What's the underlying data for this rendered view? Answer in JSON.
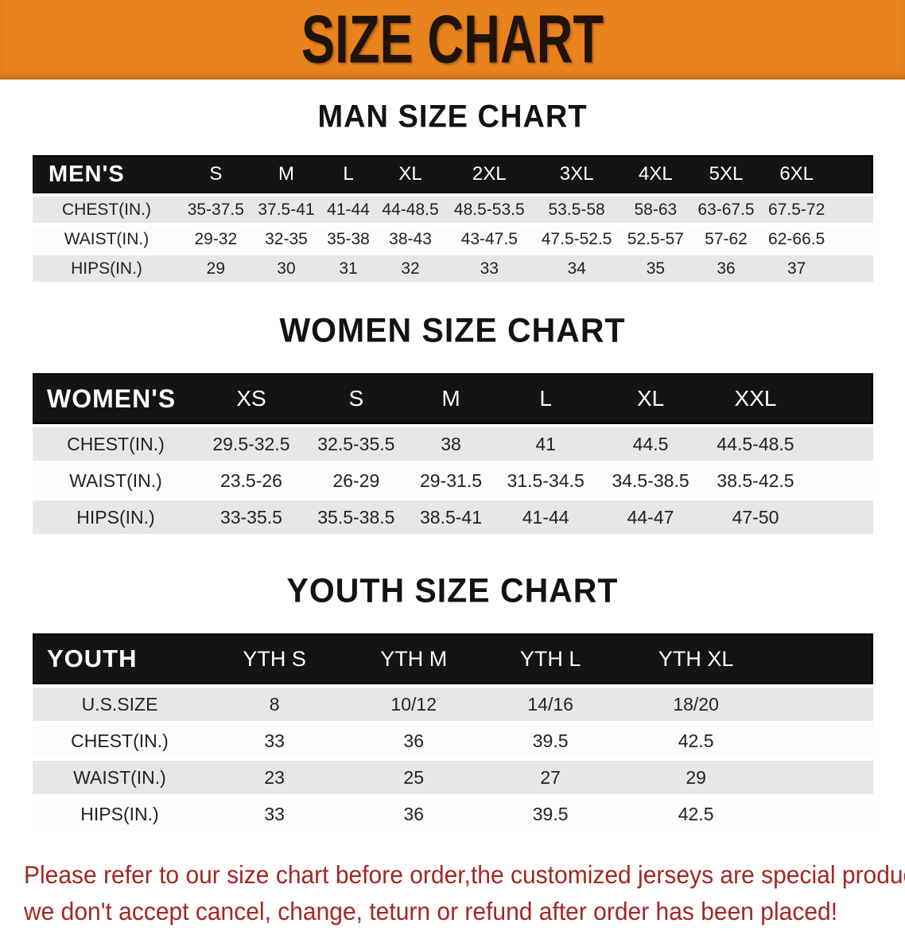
{
  "banner": {
    "title": "SIZE CHART"
  },
  "colors": {
    "banner_bg": "#e8821c",
    "banner_text": "#1f130a",
    "table_header_bg": "#141414",
    "table_header_text": "#ffffff",
    "row_gray": "#e7e7e5",
    "row_white": "#fcfcfc",
    "footer_text": "#a32723"
  },
  "sections": [
    {
      "heading": "MAN SIZE CHART",
      "table": {
        "header_label": "MEN'S",
        "columns": [
          "S",
          "M",
          "L",
          "XL",
          "2XL",
          "3XL",
          "4XL",
          "5XL",
          "6XL"
        ],
        "rows": [
          {
            "label": "CHEST(IN.)",
            "values": [
              "35-37.5",
              "37.5-41",
              "41-44",
              "44-48.5",
              "48.5-53.5",
              "53.5-58",
              "58-63",
              "63-67.5",
              "67.5-72"
            ]
          },
          {
            "label": "WAIST(IN.)",
            "values": [
              "29-32",
              "32-35",
              "35-38",
              "38-43",
              "43-47.5",
              "47.5-52.5",
              "52.5-57",
              "57-62",
              "62-66.5"
            ]
          },
          {
            "label": "HIPS(IN.)",
            "values": [
              "29",
              "30",
              "31",
              "32",
              "33",
              "34",
              "35",
              "36",
              "37"
            ]
          }
        ]
      }
    },
    {
      "heading": "WOMEN SIZE CHART",
      "table": {
        "header_label": "WOMEN'S",
        "columns": [
          "XS",
          "S",
          "M",
          "L",
          "XL",
          "XXL"
        ],
        "rows": [
          {
            "label": "CHEST(IN.)",
            "values": [
              "29.5-32.5",
              "32.5-35.5",
              "38",
              "41",
              "44.5",
              "44.5-48.5"
            ]
          },
          {
            "label": "WAIST(IN.)",
            "values": [
              "23.5-26",
              "26-29",
              "29-31.5",
              "31.5-34.5",
              "34.5-38.5",
              "38.5-42.5"
            ]
          },
          {
            "label": "HIPS(IN.)",
            "values": [
              "33-35.5",
              "35.5-38.5",
              "38.5-41",
              "41-44",
              "44-47",
              "47-50"
            ]
          }
        ]
      }
    },
    {
      "heading": "YOUTH SIZE CHART",
      "table": {
        "header_label": "YOUTH",
        "columns": [
          "YTH S",
          "YTH M",
          "YTH L",
          "YTH XL"
        ],
        "rows": [
          {
            "label": "U.S.SIZE",
            "values": [
              "8",
              "10/12",
              "14/16",
              "18/20"
            ]
          },
          {
            "label": "CHEST(IN.)",
            "values": [
              "33",
              "36",
              "39.5",
              "42.5"
            ]
          },
          {
            "label": "WAIST(IN.)",
            "values": [
              "23",
              "25",
              "27",
              "29"
            ]
          },
          {
            "label": "HIPS(IN.)",
            "values": [
              "33",
              "36",
              "39.5",
              "42.5"
            ]
          }
        ]
      }
    }
  ],
  "footer_note": {
    "line1": "Please refer to our size chart before order,the customized jerseys are special products,",
    "line2": "we don't accept cancel, change, teturn or refund after order has been placed!"
  }
}
